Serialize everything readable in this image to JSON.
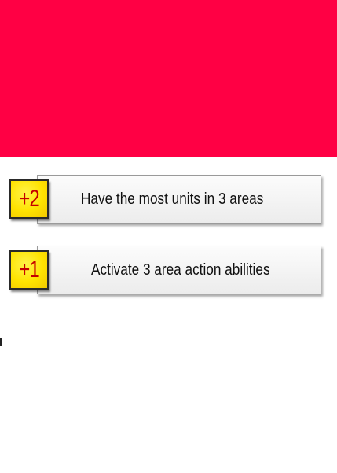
{
  "colors": {
    "banner": "#ff0044",
    "badge_fill": "#ffe300",
    "badge_text": "#c40000",
    "card_fill": "#f4f4f4"
  },
  "objectives": [
    {
      "points": "+2",
      "text": "Have the most units in 3 areas"
    },
    {
      "points": "+1",
      "text": "Activate 3 area action abilities"
    }
  ]
}
